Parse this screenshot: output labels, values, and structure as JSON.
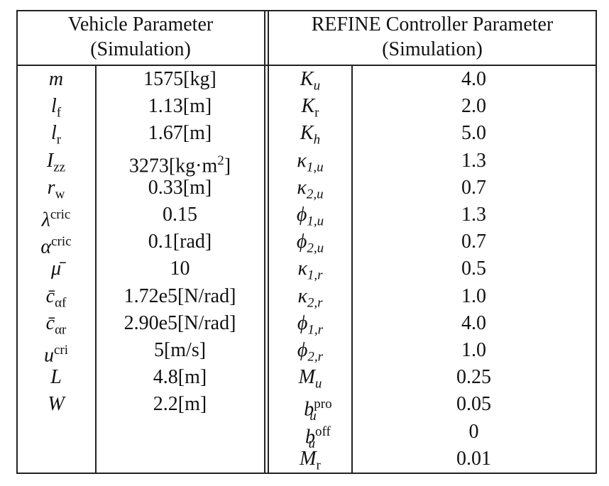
{
  "headers": {
    "left_title": "Vehicle Parameter",
    "left_sub": "(Simulation)",
    "right_title": "REFINE Controller Parameter",
    "right_sub": "(Simulation)"
  },
  "vehicle": [
    {
      "sym": "m",
      "sub": "",
      "sup": "",
      "value": "1575[kg]"
    },
    {
      "sym": "l",
      "sub": "f",
      "sup": "",
      "value": "1.13[m]"
    },
    {
      "sym": "l",
      "sub": "r",
      "sup": "",
      "value": "1.67[m]"
    },
    {
      "sym": "I",
      "sub": "zz",
      "sup": "",
      "value": "3273[kg·m",
      "value_sup": "2",
      "value_tail": "]"
    },
    {
      "sym": "r",
      "sub": "w",
      "sup": "",
      "value": "0.33[m]"
    },
    {
      "sym": "λ",
      "sub": "",
      "sup": "cric",
      "value": "0.15"
    },
    {
      "sym": "α",
      "sub": "",
      "sup": "cric",
      "value": "0.1[rad]"
    },
    {
      "sym": "μ̄",
      "sub": "",
      "sup": "",
      "value": "10"
    },
    {
      "sym": "c̄",
      "sub": "αf",
      "sup": "",
      "value": "1.72e5[N/rad]"
    },
    {
      "sym": "c̄",
      "sub": "αr",
      "sup": "",
      "value": "2.90e5[N/rad]"
    },
    {
      "sym": "u",
      "sub": "",
      "sup": "cri",
      "value": "5[m/s]"
    },
    {
      "sym": "L",
      "sub": "",
      "sup": "",
      "value": "4.8[m]"
    },
    {
      "sym": "W",
      "sub": "",
      "sup": "",
      "value": "2.2[m]"
    }
  ],
  "controller": [
    {
      "sym": "K",
      "sub": "u",
      "sup": "",
      "value": "4.0"
    },
    {
      "sym": "K",
      "sub": "r",
      "sup": "",
      "value": "2.0"
    },
    {
      "sym": "K",
      "sub": "h",
      "sup": "",
      "value": "5.0"
    },
    {
      "sym": "κ",
      "sub": "1,u",
      "sup": "",
      "value": "1.3"
    },
    {
      "sym": "κ",
      "sub": "2,u",
      "sup": "",
      "value": "0.7"
    },
    {
      "sym": "ϕ",
      "sub": "1,u",
      "sup": "",
      "value": "1.3"
    },
    {
      "sym": "ϕ",
      "sub": "2,u",
      "sup": "",
      "value": "0.7"
    },
    {
      "sym": "κ",
      "sub": "1,r",
      "sup": "",
      "value": "0.5"
    },
    {
      "sym": "κ",
      "sub": "2,r",
      "sup": "",
      "value": "1.0"
    },
    {
      "sym": "ϕ",
      "sub": "1,r",
      "sup": "",
      "value": "4.0"
    },
    {
      "sym": "ϕ",
      "sub": "2,r",
      "sup": "",
      "value": "1.0"
    },
    {
      "sym": "M",
      "sub": "u",
      "sup": "",
      "value": "0.25"
    },
    {
      "sym": "b",
      "sub": "u",
      "sup": "pro",
      "value": "0.05"
    },
    {
      "sym": "b",
      "sub": "u",
      "sup": "off",
      "value": "0"
    },
    {
      "sym": "M",
      "sub": "r",
      "sup": "",
      "value": "0.01"
    }
  ]
}
